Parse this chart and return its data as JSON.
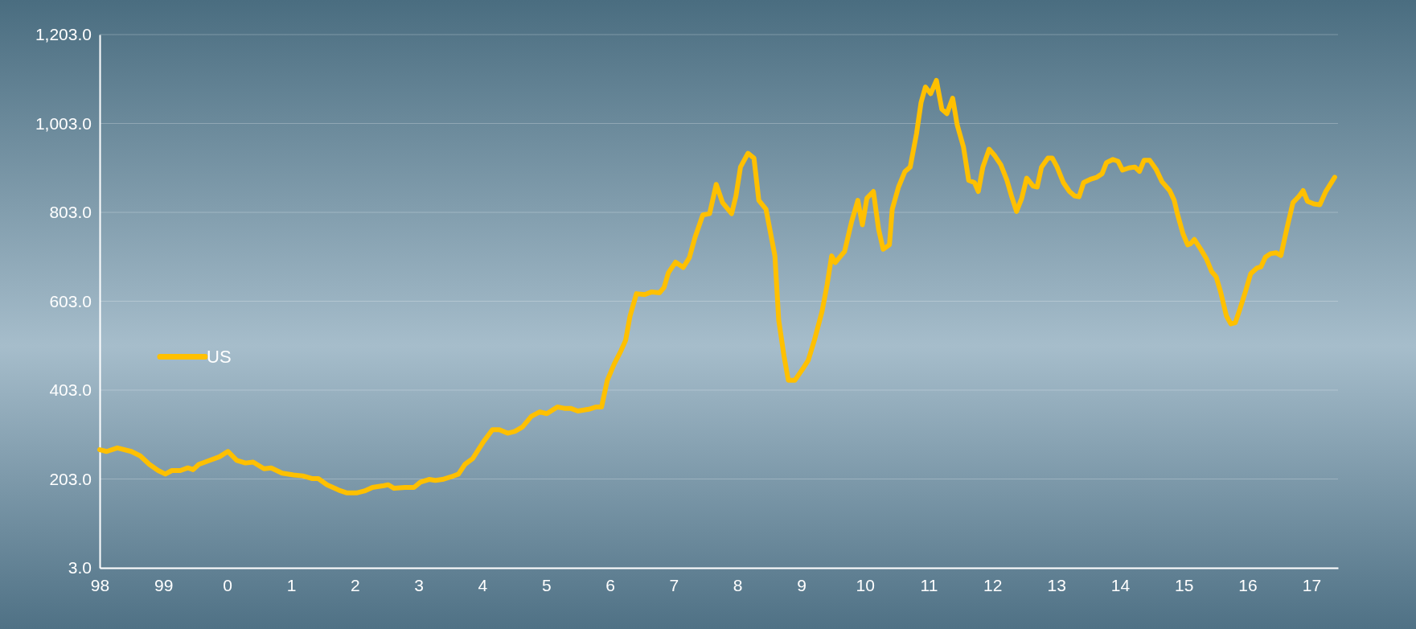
{
  "chart_data": {
    "type": "line",
    "x": [
      "1998-01-01",
      "1998-02-10",
      "1998-04-12",
      "1998-07-01",
      "1998-08-21",
      "1998-10-12",
      "1998-12-02",
      "1999-01-12",
      "1999-02-18",
      "1999-04-08",
      "1999-05-21",
      "1999-06-20",
      "1999-07-23",
      "1999-09-24",
      "1999-11-18",
      "2000-01-05",
      "2000-02-25",
      "2000-04-15",
      "2000-05-29",
      "2000-07-30",
      "2000-09-09",
      "2000-11-11",
      "2001-01-15",
      "2001-03-09",
      "2001-04-30",
      "2001-06-06",
      "2001-07-26",
      "2001-10-01",
      "2001-11-14",
      "2002-01-15",
      "2002-02-25",
      "2002-04-12",
      "2002-06-17",
      "2002-07-12",
      "2002-08-14",
      "2002-10-15",
      "2002-12-06",
      "2003-01-12",
      "2003-03-02",
      "2003-04-08",
      "2003-05-18",
      "2003-07-08",
      "2003-08-18",
      "2003-09-24",
      "2003-11-07",
      "2004-01-08",
      "2004-02-28",
      "2004-04-08",
      "2004-05-25",
      "2004-07-05",
      "2004-08-18",
      "2004-10-08",
      "2004-11-25",
      "2005-01-05",
      "2005-03-06",
      "2005-04-15",
      "2005-05-21",
      "2005-07-01",
      "2005-09-02",
      "2005-10-15",
      "2005-11-14",
      "2005-12-17",
      "2006-01-26",
      "2006-03-06",
      "2006-04-01",
      "2006-04-26",
      "2006-06-02",
      "2006-07-19",
      "2006-08-29",
      "2006-10-12",
      "2006-11-07",
      "2006-12-02",
      "2007-01-12",
      "2007-02-25",
      "2007-04-01",
      "2007-05-03",
      "2007-06-17",
      "2007-07-26",
      "2007-09-02",
      "2007-10-08",
      "2007-11-29",
      "2007-12-24",
      "2008-01-19",
      "2008-03-02",
      "2008-04-05",
      "2008-05-03",
      "2008-06-13",
      "2008-08-03",
      "2008-08-25",
      "2008-09-24",
      "2008-10-19",
      "2008-11-25",
      "2009-01-08",
      "2009-02-10",
      "2009-03-17",
      "2009-04-30",
      "2009-05-29",
      "2009-06-24",
      "2009-07-15",
      "2009-09-06",
      "2009-10-15",
      "2009-11-21",
      "2009-12-17",
      "2010-01-12",
      "2010-02-18",
      "2010-03-20",
      "2010-04-15",
      "2010-05-21",
      "2010-06-06",
      "2010-07-12",
      "2010-08-18",
      "2010-09-17",
      "2010-10-23",
      "2010-11-18",
      "2010-12-13",
      "2011-01-12",
      "2011-02-14",
      "2011-03-17",
      "2011-04-15",
      "2011-05-18",
      "2011-06-13",
      "2011-07-19",
      "2011-08-18",
      "2011-09-20",
      "2011-10-12",
      "2011-11-07",
      "2011-12-13",
      "2012-01-15",
      "2012-02-18",
      "2012-03-24",
      "2012-04-19",
      "2012-05-18",
      "2012-06-17",
      "2012-07-15",
      "2012-08-21",
      "2012-09-13",
      "2012-10-08",
      "2012-11-14",
      "2012-12-09",
      "2013-01-05",
      "2013-02-10",
      "2013-03-17",
      "2013-04-15",
      "2013-05-11",
      "2013-06-06",
      "2013-07-19",
      "2013-08-21",
      "2013-09-20",
      "2013-10-15",
      "2013-11-21",
      "2013-12-20",
      "2014-01-15",
      "2014-02-21",
      "2014-03-27",
      "2014-04-22",
      "2014-05-18",
      "2014-06-20",
      "2014-07-26",
      "2014-08-29",
      "2014-10-12",
      "2014-11-07",
      "2014-11-25",
      "2014-12-27",
      "2015-01-23",
      "2015-02-07",
      "2015-03-02",
      "2015-04-08",
      "2015-05-11",
      "2015-06-09",
      "2015-07-05",
      "2015-07-30",
      "2015-09-02",
      "2015-09-27",
      "2015-10-23",
      "2015-11-18",
      "2015-12-20",
      "2016-01-19",
      "2016-02-25",
      "2016-03-17",
      "2016-04-12",
      "2016-05-11",
      "2016-06-13",
      "2016-07-10",
      "2016-08-14",
      "2016-09-17",
      "2016-10-19",
      "2016-11-14",
      "2016-12-09",
      "2017-01-15",
      "2017-02-18",
      "2017-03-24",
      "2017-05-14"
    ],
    "series": [
      {
        "name": "US",
        "color": "#ffc000",
        "values": [
          269,
          265,
          273,
          265,
          255,
          236,
          222,
          214,
          222,
          222,
          228,
          224,
          236,
          245,
          253,
          265,
          245,
          239,
          241,
          226,
          228,
          216,
          212,
          210,
          204,
          204,
          190,
          178,
          172,
          172,
          176,
          184,
          188,
          190,
          182,
          184,
          184,
          196,
          202,
          200,
          202,
          208,
          214,
          236,
          249,
          287,
          314,
          314,
          306,
          310,
          320,
          344,
          354,
          350,
          365,
          362,
          362,
          356,
          360,
          365,
          365,
          425,
          462,
          492,
          515,
          569,
          620,
          618,
          624,
          622,
          634,
          667,
          691,
          679,
          701,
          746,
          797,
          800,
          866,
          825,
          800,
          840,
          905,
          936,
          925,
          830,
          810,
          705,
          560,
          480,
          425,
          425,
          450,
          470,
          515,
          580,
          640,
          705,
          690,
          715,
          780,
          830,
          775,
          835,
          850,
          765,
          720,
          730,
          810,
          860,
          895,
          905,
          980,
          1050,
          1085,
          1070,
          1100,
          1035,
          1025,
          1060,
          1000,
          950,
          875,
          870,
          850,
          905,
          945,
          930,
          910,
          875,
          840,
          805,
          835,
          880,
          862,
          860,
          905,
          925,
          925,
          905,
          870,
          850,
          840,
          838,
          870,
          878,
          882,
          890,
          915,
          922,
          918,
          898,
          903,
          905,
          895,
          920,
          920,
          900,
          872,
          852,
          830,
          800,
          755,
          730,
          732,
          742,
          720,
          698,
          670,
          658,
          625,
          570,
          552,
          555,
          585,
          625,
          665,
          678,
          680,
          702,
          710,
          712,
          706,
          768,
          825,
          838,
          852,
          828,
          822,
          820,
          850,
          882
        ]
      }
    ],
    "xlim": [
      "1998-01-01",
      "2017-06-02"
    ],
    "xticks": [
      {
        "value": "1998",
        "label": "98"
      },
      {
        "value": "1999",
        "label": "99"
      },
      {
        "value": "2000",
        "label": "0"
      },
      {
        "value": "2001",
        "label": "1"
      },
      {
        "value": "2002",
        "label": "2"
      },
      {
        "value": "2003",
        "label": "3"
      },
      {
        "value": "2004",
        "label": "4"
      },
      {
        "value": "2005",
        "label": "5"
      },
      {
        "value": "2006",
        "label": "6"
      },
      {
        "value": "2007",
        "label": "7"
      },
      {
        "value": "2008",
        "label": "8"
      },
      {
        "value": "2009",
        "label": "9"
      },
      {
        "value": "2010",
        "label": "10"
      },
      {
        "value": "2011",
        "label": "11"
      },
      {
        "value": "2012",
        "label": "12"
      },
      {
        "value": "2013",
        "label": "13"
      },
      {
        "value": "2014",
        "label": "14"
      },
      {
        "value": "2015",
        "label": "15"
      },
      {
        "value": "2016",
        "label": "16"
      },
      {
        "value": "2017",
        "label": "17"
      }
    ],
    "ylim": [
      3,
      1203
    ],
    "yticks": [
      {
        "value": 3,
        "label": "3.0"
      },
      {
        "value": 203,
        "label": "203.0"
      },
      {
        "value": 403,
        "label": "403.0"
      },
      {
        "value": 603,
        "label": "603.0"
      },
      {
        "value": 803,
        "label": "803.0"
      },
      {
        "value": 1003,
        "label": "1,003.0"
      },
      {
        "value": 1203,
        "label": "1,203.0"
      }
    ],
    "grid": "y",
    "legend": "left",
    "marker": "none",
    "line_style": "solid"
  }
}
